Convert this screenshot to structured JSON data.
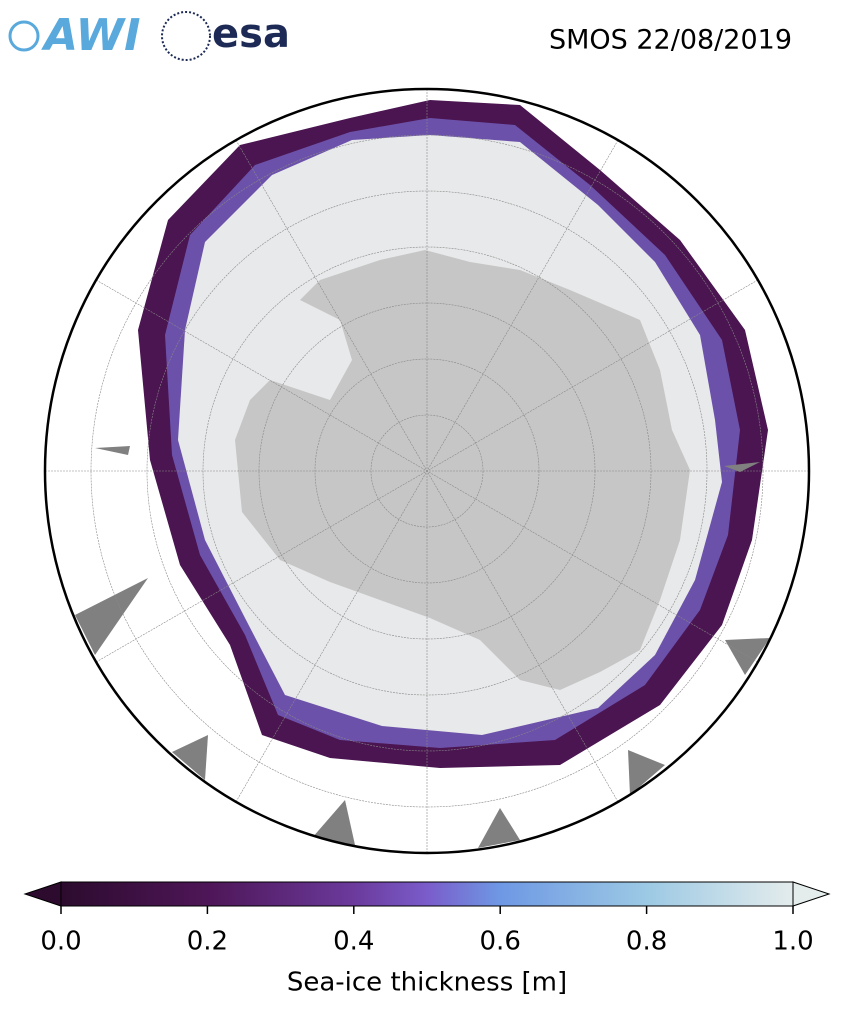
{
  "header": {
    "logo_awi": "AWI",
    "logo_esa": "esa",
    "title": "SMOS 22/08/2019"
  },
  "colorbar": {
    "label": "Sea-ice thickness [m]",
    "lim": [
      0,
      1
    ],
    "ticks": [
      {
        "value": 0,
        "label": "0.0"
      },
      0.2,
      0.4,
      0.6,
      0.8,
      {
        "value": 1,
        "label": "1.0"
      }
    ]
  }
}
